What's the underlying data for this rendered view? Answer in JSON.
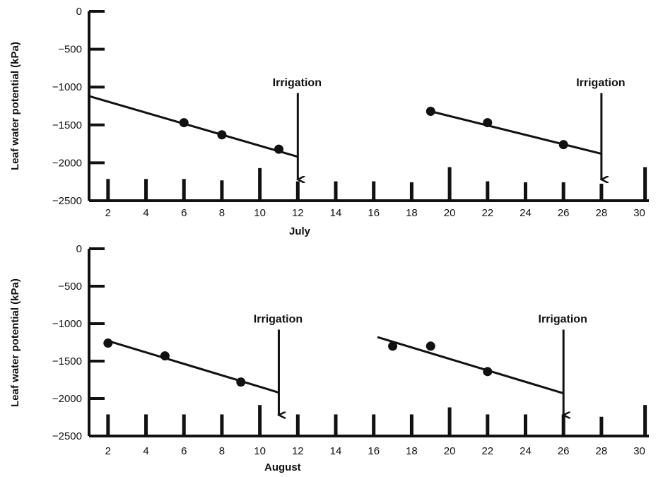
{
  "chart_data": [
    {
      "type": "scatter",
      "title": "",
      "xlabel": "July",
      "ylabel": "Leaf water potential (kPa)",
      "xlim": [
        1,
        30.5
      ],
      "ylim": [
        -2500,
        0
      ],
      "x_ticks": [
        "2",
        "4",
        "6",
        "8",
        "10",
        "12",
        "14",
        "16",
        "18",
        "20",
        "22",
        "24",
        "26",
        "28",
        "30"
      ],
      "y_ticks": [
        "0",
        "-500",
        "-1000",
        "-1500",
        "-2000",
        "-2500"
      ],
      "grid": false,
      "series": [
        {
          "points": [
            [
              6,
              -1470
            ],
            [
              8,
              -1630
            ],
            [
              11,
              -1820
            ]
          ]
        },
        {
          "points": [
            [
              19,
              -1320
            ],
            [
              22,
              -1470
            ],
            [
              26,
              -1760
            ]
          ]
        }
      ],
      "trend_lines": [
        {
          "from": [
            1,
            -1120
          ],
          "to": [
            12,
            -1920
          ]
        },
        {
          "from": [
            19,
            -1320
          ],
          "to": [
            28,
            -1880
          ]
        }
      ],
      "annotations": [
        {
          "text": "Irrigation",
          "x": 12,
          "arrow_from_y": -1080,
          "arrow_to_y": -2220
        },
        {
          "text": "Irrigation",
          "x": 28,
          "arrow_from_y": -1080,
          "arrow_to_y": -2220
        }
      ],
      "rain_days": [
        {
          "day": 2,
          "amount": 0.25
        },
        {
          "day": 4,
          "amount": 0.25
        },
        {
          "day": 6,
          "amount": 0.25
        },
        {
          "day": 8,
          "amount": 0.22
        },
        {
          "day": 10,
          "amount": 0.48
        },
        {
          "day": 12,
          "amount": 0.2
        },
        {
          "day": 14,
          "amount": 0.2
        },
        {
          "day": 16,
          "amount": 0.2
        },
        {
          "day": 18,
          "amount": 0.18
        },
        {
          "day": 20,
          "amount": 0.5
        },
        {
          "day": 22,
          "amount": 0.2
        },
        {
          "day": 24,
          "amount": 0.18
        },
        {
          "day": 26,
          "amount": 0.18
        },
        {
          "day": 28,
          "amount": 0.15
        },
        {
          "day": 30.3,
          "amount": 0.5
        }
      ]
    },
    {
      "type": "scatter",
      "title": "",
      "xlabel": "August",
      "ylabel": "Leaf water potential (kPa)",
      "xlim": [
        1,
        30.5
      ],
      "ylim": [
        -2500,
        0
      ],
      "x_ticks": [
        "2",
        "4",
        "6",
        "8",
        "10",
        "12",
        "14",
        "16",
        "18",
        "20",
        "22",
        "24",
        "26",
        "28",
        "30"
      ],
      "y_ticks": [
        "0",
        "-500",
        "-1000",
        "-1500",
        "-2000",
        "-2500"
      ],
      "grid": false,
      "series": [
        {
          "points": [
            [
              2,
              -1260
            ],
            [
              5,
              -1430
            ],
            [
              9,
              -1780
            ]
          ]
        },
        {
          "points": [
            [
              17,
              -1300
            ],
            [
              19,
              -1300
            ],
            [
              22,
              -1640
            ]
          ]
        }
      ],
      "trend_lines": [
        {
          "from": [
            2,
            -1230
          ],
          "to": [
            11,
            -1920
          ]
        },
        {
          "from": [
            16.2,
            -1180
          ],
          "to": [
            26,
            -1930
          ]
        }
      ],
      "annotations": [
        {
          "text": "Irrigation",
          "x": 11,
          "arrow_from_y": -1080,
          "arrow_to_y": -2220
        },
        {
          "text": "Irrigation",
          "x": 26,
          "arrow_from_y": -1080,
          "arrow_to_y": -2220
        }
      ],
      "rain_days": [
        {
          "day": 2,
          "amount": 0.25
        },
        {
          "day": 4,
          "amount": 0.25
        },
        {
          "day": 6,
          "amount": 0.25
        },
        {
          "day": 8,
          "amount": 0.25
        },
        {
          "day": 10,
          "amount": 0.45
        },
        {
          "day": 12,
          "amount": 0.25
        },
        {
          "day": 14,
          "amount": 0.25
        },
        {
          "day": 16,
          "amount": 0.25
        },
        {
          "day": 18,
          "amount": 0.25
        },
        {
          "day": 20,
          "amount": 0.4
        },
        {
          "day": 22,
          "amount": 0.25
        },
        {
          "day": 24,
          "amount": 0.25
        },
        {
          "day": 26,
          "amount": 0.25
        },
        {
          "day": 28,
          "amount": 0.2
        },
        {
          "day": 30.3,
          "amount": 0.45
        }
      ]
    }
  ]
}
